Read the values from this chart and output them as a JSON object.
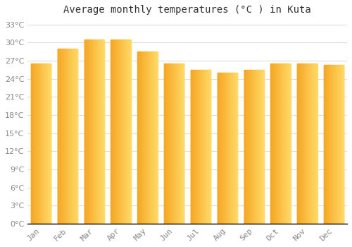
{
  "title": "Average monthly temperatures (°C ) in Kuta",
  "months": [
    "Jan",
    "Feb",
    "Mar",
    "Apr",
    "May",
    "Jun",
    "Jul",
    "Aug",
    "Sep",
    "Oct",
    "Nov",
    "Dec"
  ],
  "values": [
    26.5,
    29.0,
    30.5,
    30.5,
    28.5,
    26.5,
    25.5,
    25.0,
    25.5,
    26.5,
    26.5,
    26.3
  ],
  "bar_color_left": "#F5A623",
  "bar_color_right": "#FFD966",
  "bar_color_main": "#FFBB33",
  "background_color": "#FFFFFF",
  "grid_color": "#DDDDDD",
  "title_fontsize": 10,
  "tick_fontsize": 8,
  "ylim": [
    0,
    34
  ],
  "ytick_step": 3,
  "bar_width": 0.75,
  "spine_color": "#000000"
}
